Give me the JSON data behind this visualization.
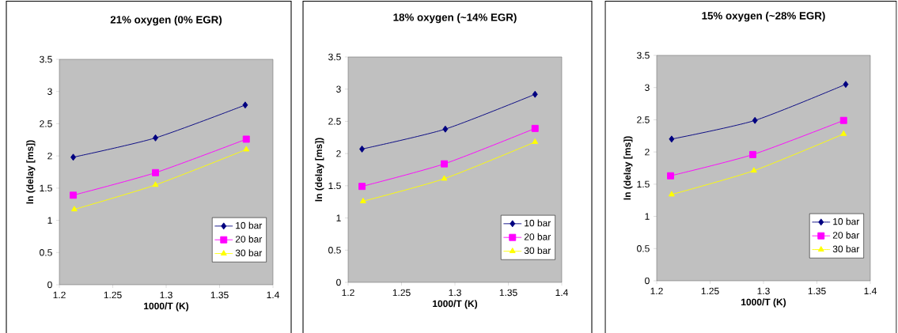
{
  "chart_data": [
    {
      "type": "line",
      "title": "21% oxygen (0% EGR)",
      "xlabel": "1000/T (K)",
      "ylabel": "ln (delay [ms])",
      "xlim": [
        1.2,
        1.4
      ],
      "ylim": [
        0,
        3.5
      ],
      "xticks": [
        1.2,
        1.25,
        1.3,
        1.35,
        1.4
      ],
      "yticks": [
        0,
        0.5,
        1,
        1.5,
        2,
        2.5,
        3,
        3.5
      ],
      "grid": false,
      "legend": "bottom right",
      "series": [
        {
          "name": "10 bar",
          "color": "#000080",
          "marker": "diamond",
          "x": [
            1.213,
            1.29,
            1.374
          ],
          "values": [
            1.98,
            2.28,
            2.79
          ]
        },
        {
          "name": "20 bar",
          "color": "#ff00ff",
          "marker": "square",
          "x": [
            1.213,
            1.29,
            1.375
          ],
          "values": [
            1.39,
            1.74,
            2.26
          ]
        },
        {
          "name": "30 bar",
          "color": "#ffff00",
          "marker": "triangle",
          "x": [
            1.214,
            1.29,
            1.375
          ],
          "values": [
            1.17,
            1.55,
            2.1
          ]
        }
      ]
    },
    {
      "type": "line",
      "title": "18% oxygen (~14% EGR)",
      "xlabel": "1000/T (K)",
      "ylabel": "ln (delay [ms])",
      "xlim": [
        1.2,
        1.4
      ],
      "ylim": [
        0,
        3.5
      ],
      "xticks": [
        1.2,
        1.25,
        1.3,
        1.35,
        1.4
      ],
      "yticks": [
        0,
        0.5,
        1,
        1.5,
        2,
        2.5,
        3,
        3.5
      ],
      "grid": false,
      "legend": "bottom right",
      "series": [
        {
          "name": "10 bar",
          "color": "#000080",
          "marker": "diamond",
          "x": [
            1.213,
            1.291,
            1.375
          ],
          "values": [
            2.07,
            2.38,
            2.92
          ]
        },
        {
          "name": "20 bar",
          "color": "#ff00ff",
          "marker": "square",
          "x": [
            1.213,
            1.29,
            1.375
          ],
          "values": [
            1.49,
            1.84,
            2.39
          ]
        },
        {
          "name": "30 bar",
          "color": "#ffff00",
          "marker": "triangle",
          "x": [
            1.214,
            1.29,
            1.375
          ],
          "values": [
            1.26,
            1.61,
            2.18
          ]
        }
      ]
    },
    {
      "type": "line",
      "title": "15% oxygen (~28% EGR)",
      "xlabel": "1000/T (K)",
      "ylabel": "ln (delay [ms])",
      "xlim": [
        1.2,
        1.4
      ],
      "ylim": [
        0,
        3.5
      ],
      "xticks": [
        1.2,
        1.25,
        1.3,
        1.35,
        1.4
      ],
      "yticks": [
        0,
        0.5,
        1,
        1.5,
        2,
        2.5,
        3,
        3.5
      ],
      "grid": false,
      "legend": "bottom right",
      "series": [
        {
          "name": "10 bar",
          "color": "#000080",
          "marker": "diamond",
          "x": [
            1.214,
            1.292,
            1.377
          ],
          "values": [
            2.2,
            2.49,
            3.05
          ]
        },
        {
          "name": "20 bar",
          "color": "#ff00ff",
          "marker": "square",
          "x": [
            1.213,
            1.29,
            1.375
          ],
          "values": [
            1.63,
            1.96,
            2.49
          ]
        },
        {
          "name": "30 bar",
          "color": "#ffff00",
          "marker": "triangle",
          "x": [
            1.214,
            1.291,
            1.375
          ],
          "values": [
            1.34,
            1.71,
            2.28
          ]
        }
      ]
    }
  ]
}
